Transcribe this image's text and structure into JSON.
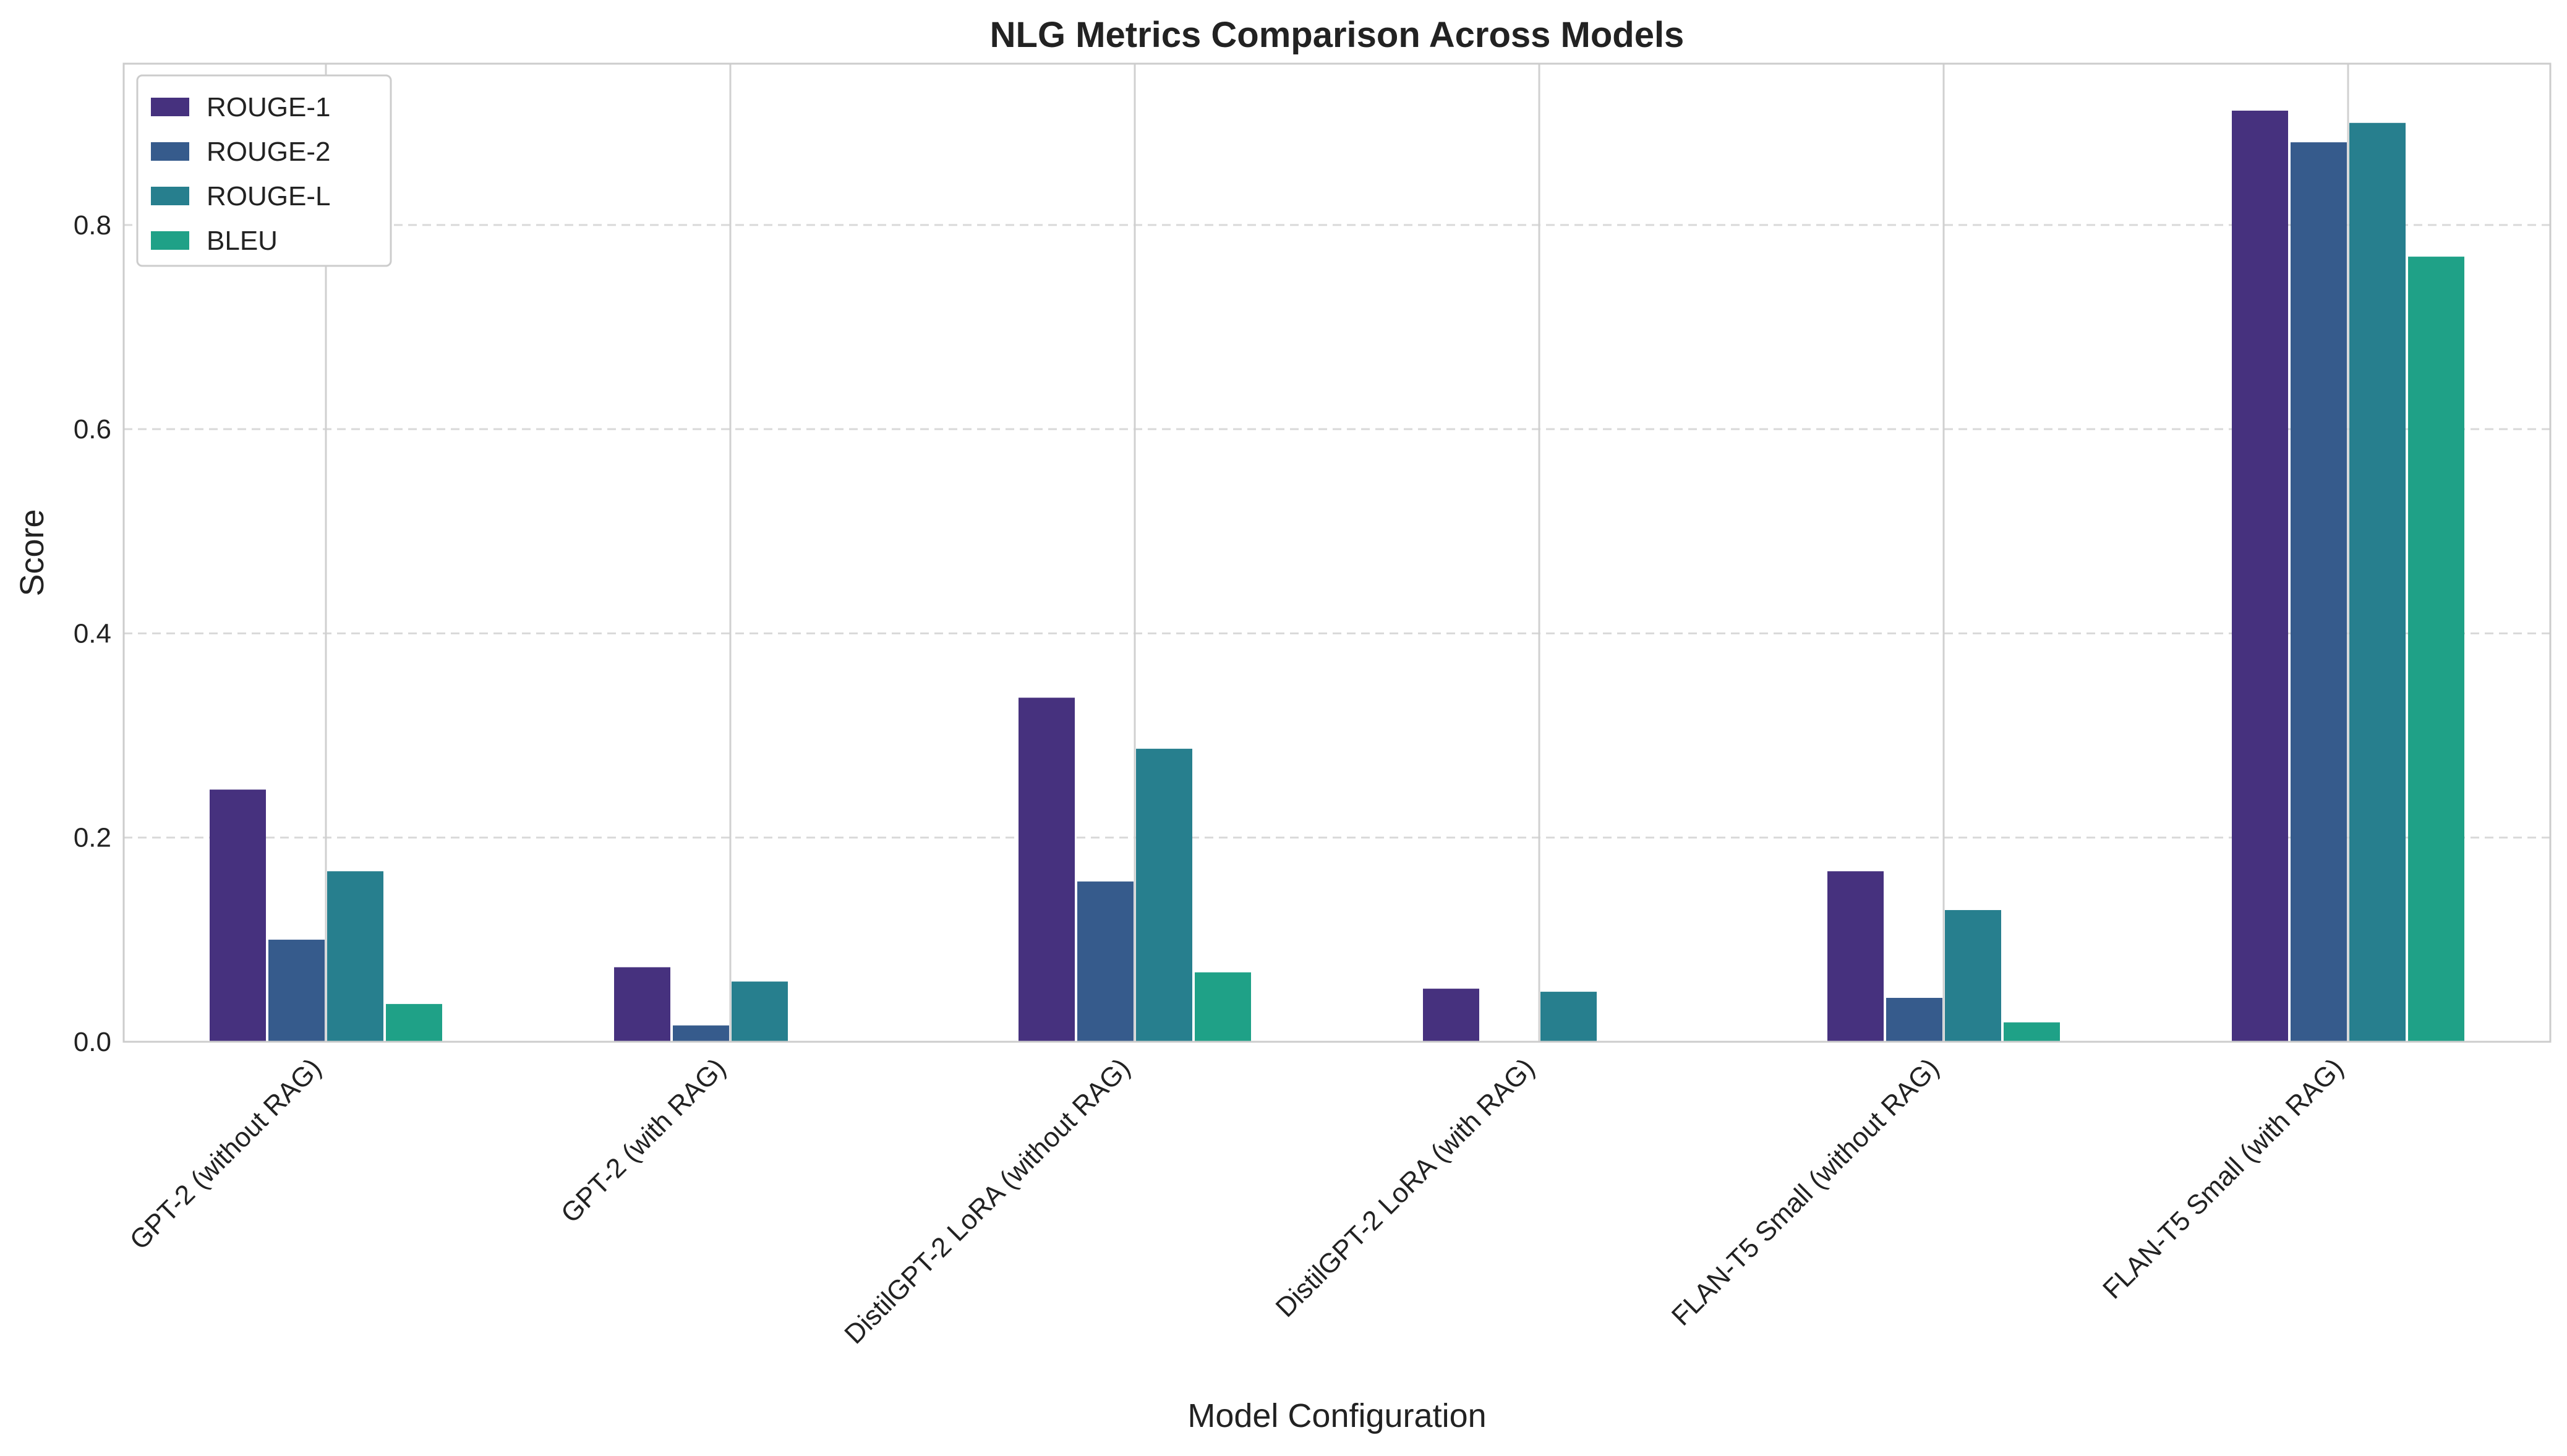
{
  "chart_data": {
    "type": "bar",
    "title": "NLG Metrics Comparison Across Models",
    "xlabel": "Model Configuration",
    "ylabel": "Score",
    "ylim": [
      0,
      0.958
    ],
    "yticks": [
      0.0,
      0.2,
      0.4,
      0.6,
      0.8
    ],
    "ytick_labels": [
      "0.0",
      "0.2",
      "0.4",
      "0.6",
      "0.8"
    ],
    "categories": [
      "GPT-2 (without RAG)",
      "GPT-2 (with RAG)",
      "DistilGPT-2 LoRA (without RAG)",
      "DistilGPT-2 LoRA (with RAG)",
      "FLAN-T5 Small (without RAG)",
      "FLAN-T5 Small (with RAG)"
    ],
    "series": [
      {
        "name": "ROUGE-1",
        "color": "#46317e",
        "values": [
          0.247,
          0.073,
          0.337,
          0.052,
          0.167,
          0.912
        ]
      },
      {
        "name": "ROUGE-2",
        "color": "#365b8c",
        "values": [
          0.1,
          0.016,
          0.157,
          0.0,
          0.043,
          0.881
        ]
      },
      {
        "name": "ROUGE-L",
        "color": "#277f8e",
        "values": [
          0.167,
          0.059,
          0.287,
          0.049,
          0.129,
          0.9
        ]
      },
      {
        "name": "BLEU",
        "color": "#1fa187",
        "values": [
          0.037,
          0.0,
          0.068,
          0.0,
          0.019,
          0.769
        ]
      }
    ],
    "legend_position": "top-left",
    "grid": {
      "y": true,
      "y_style": "dashed",
      "x": true
    },
    "tick_rotation": -45
  }
}
